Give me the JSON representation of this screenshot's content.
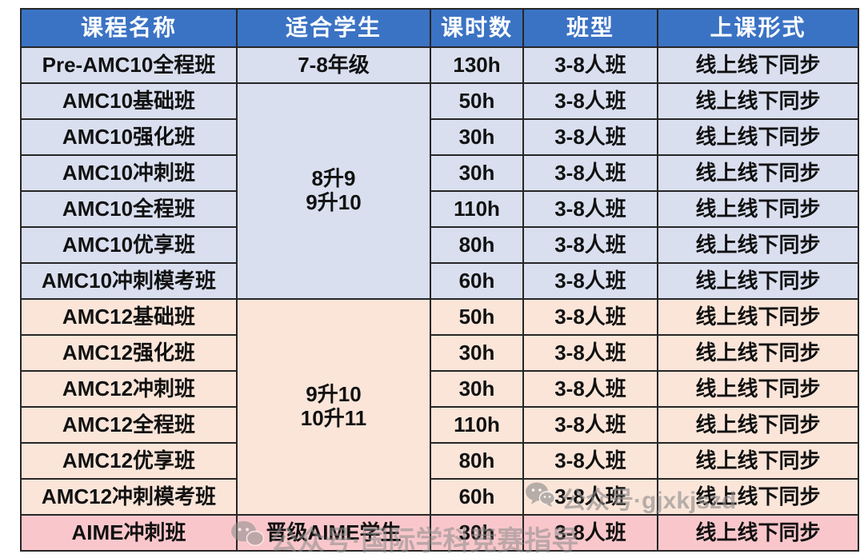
{
  "table": {
    "header": [
      "课程名称",
      "适合学生",
      "课时数",
      "班型",
      "上课形式"
    ],
    "rows": [
      {
        "course": "Pre-AMC10全程班",
        "students": "7-8年级",
        "students_rowspan": 1,
        "hours": "130h",
        "class_size": "3-8人班",
        "format": "线上线下同步",
        "section": "amc10"
      },
      {
        "course": "AMC10基础班",
        "students": "8升9\n9升10",
        "students_rowspan": 6,
        "hours": "50h",
        "class_size": "3-8人班",
        "format": "线上线下同步",
        "section": "amc10"
      },
      {
        "course": "AMC10强化班",
        "students": "",
        "students_rowspan": 0,
        "hours": "30h",
        "class_size": "3-8人班",
        "format": "线上线下同步",
        "section": "amc10"
      },
      {
        "course": "AMC10冲刺班",
        "students": "",
        "students_rowspan": 0,
        "hours": "30h",
        "class_size": "3-8人班",
        "format": "线上线下同步",
        "section": "amc10"
      },
      {
        "course": "AMC10全程班",
        "students": "",
        "students_rowspan": 0,
        "hours": "110h",
        "class_size": "3-8人班",
        "format": "线上线下同步",
        "section": "amc10"
      },
      {
        "course": "AMC10优享班",
        "students": "",
        "students_rowspan": 0,
        "hours": "80h",
        "class_size": "3-8人班",
        "format": "线上线下同步",
        "section": "amc10"
      },
      {
        "course": "AMC10冲刺模考班",
        "students": "",
        "students_rowspan": 0,
        "hours": "60h",
        "class_size": "3-8人班",
        "format": "线上线下同步",
        "section": "amc10"
      },
      {
        "course": "AMC12基础班",
        "students": "9升10\n10升11",
        "students_rowspan": 6,
        "hours": "50h",
        "class_size": "3-8人班",
        "format": "线上线下同步",
        "section": "amc12"
      },
      {
        "course": "AMC12强化班",
        "students": "",
        "students_rowspan": 0,
        "hours": "30h",
        "class_size": "3-8人班",
        "format": "线上线下同步",
        "section": "amc12"
      },
      {
        "course": "AMC12冲刺班",
        "students": "",
        "students_rowspan": 0,
        "hours": "30h",
        "class_size": "3-8人班",
        "format": "线上线下同步",
        "section": "amc12"
      },
      {
        "course": "AMC12全程班",
        "students": "",
        "students_rowspan": 0,
        "hours": "110h",
        "class_size": "3-8人班",
        "format": "线上线下同步",
        "section": "amc12"
      },
      {
        "course": "AMC12优享班",
        "students": "",
        "students_rowspan": 0,
        "hours": "80h",
        "class_size": "3-8人班",
        "format": "线上线下同步",
        "section": "amc12"
      },
      {
        "course": "AMC12冲刺模考班",
        "students": "",
        "students_rowspan": 0,
        "hours": "60h",
        "class_size": "3-8人班",
        "format": "线上线下同步",
        "section": "amc12"
      },
      {
        "course": "AIME冲刺班",
        "students": "晋级AIME学生",
        "students_rowspan": 1,
        "hours": "30h",
        "class_size": "3-8人班",
        "format": "线上线下同步",
        "section": "aime"
      }
    ]
  },
  "watermark": {
    "main_text": "公众号·gjxkjszd",
    "bottom_text": "公众号·国际学科竞赛指导",
    "icon": "wechat-icon"
  },
  "colors": {
    "header_bg": "#3B73C4",
    "header_text": "#FFFFFF",
    "amc10_bg": "#D9DFEF",
    "amc12_bg": "#FBE5D9",
    "aime_bg": "#F9C7CB",
    "border": "#262626",
    "watermark": "#8C8C8C"
  }
}
